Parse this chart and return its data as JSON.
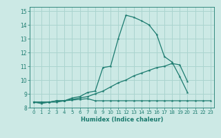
{
  "xlabel": "Humidex (Indice chaleur)",
  "background_color": "#cce9e5",
  "grid_color": "#aad4cf",
  "line_color": "#1a7a6e",
  "xlim": [
    -0.5,
    23.5
  ],
  "ylim": [
    8.0,
    15.3
  ],
  "xticks": [
    0,
    1,
    2,
    3,
    4,
    5,
    6,
    7,
    8,
    9,
    10,
    11,
    12,
    13,
    14,
    15,
    16,
    17,
    18,
    19,
    20,
    21,
    22,
    23
  ],
  "yticks": [
    8,
    9,
    10,
    11,
    12,
    13,
    14,
    15
  ],
  "series": [
    [
      8.4,
      8.3,
      8.4,
      8.4,
      8.5,
      8.7,
      8.8,
      9.1,
      9.2,
      10.9,
      11.0,
      13.0,
      14.7,
      14.55,
      14.3,
      14.0,
      13.3,
      11.7,
      11.3,
      10.25,
      9.1,
      null,
      null,
      null
    ],
    [
      8.4,
      8.4,
      8.4,
      8.5,
      8.5,
      8.6,
      8.7,
      8.8,
      9.0,
      9.2,
      9.5,
      9.8,
      10.0,
      10.3,
      10.5,
      10.7,
      10.9,
      11.0,
      11.2,
      11.1,
      9.9,
      null,
      null,
      null
    ],
    [
      8.4,
      8.4,
      8.4,
      8.5,
      8.5,
      8.55,
      8.6,
      8.65,
      8.5,
      8.5,
      8.5,
      8.5,
      8.5,
      8.5,
      8.5,
      8.5,
      8.5,
      8.5,
      8.5,
      8.5,
      8.5,
      8.5,
      8.5,
      8.5
    ]
  ]
}
